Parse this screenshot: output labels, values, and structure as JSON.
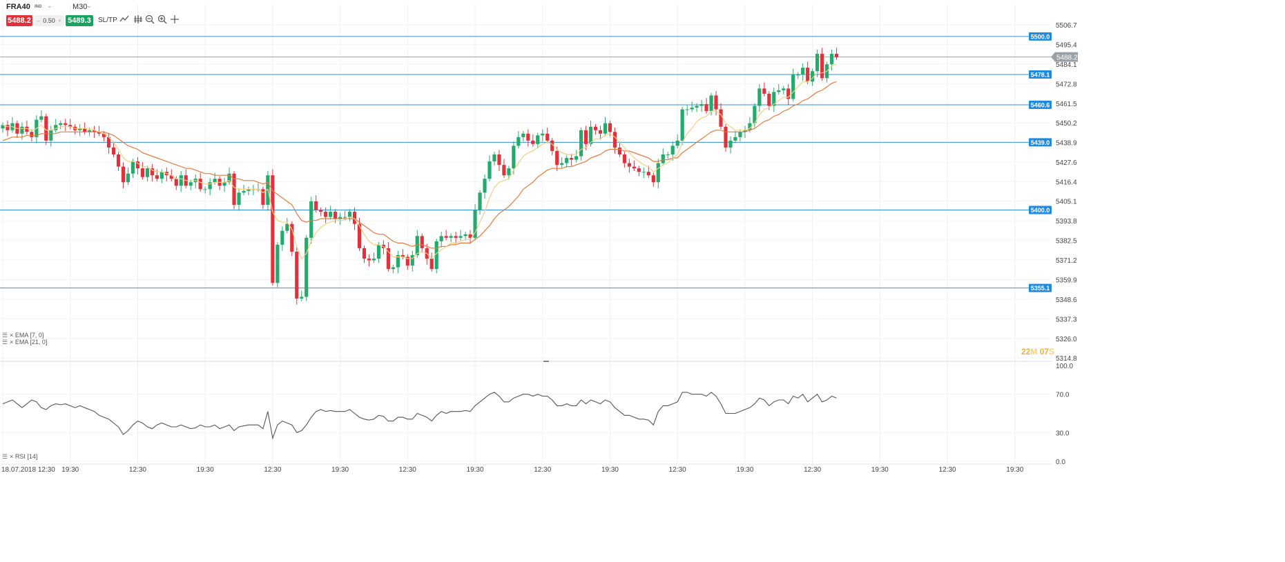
{
  "toolbar": {
    "symbol": "FRA40",
    "symbol_type": "IND",
    "timeframe": "M30",
    "sell_price": "5488.2",
    "spread": "0.50",
    "buy_price": "5489.3",
    "sltp_label": "SL/TP",
    "icons": [
      "chart-type-icon",
      "indicators-icon",
      "zoom-out-icon",
      "zoom-in-icon",
      "crosshair-icon"
    ]
  },
  "indicators": {
    "ema7_label": "EMA [7, 0]",
    "ema21_label": "EMA [21, 0]",
    "rsi_label": "RSI [14]"
  },
  "countdown": {
    "minutes": "22",
    "m_unit": "M",
    "seconds": "07",
    "s_unit": "S"
  },
  "colors": {
    "up": "#26a96c",
    "down": "#e0323c",
    "ema7": "#f2cf86",
    "ema21": "#e07a3e",
    "hline": "#2f8fdc",
    "level_badge": "#1f8ae0",
    "current_price": "#9aa1a6",
    "rsi": "#555555"
  },
  "chart_data": [
    {
      "type": "candlestick",
      "title": "",
      "y_ticks": [
        "5506.7",
        "5495.4",
        "5484.1",
        "5472.8",
        "5461.5",
        "5450.2",
        "5438.9",
        "5427.6",
        "5416.4",
        "5405.1",
        "5393.8",
        "5382.5",
        "5371.2",
        "5359.9",
        "5348.6",
        "5337.3",
        "5326.0",
        "5314.8"
      ],
      "ylim": [
        5314.8,
        5506.7
      ],
      "x_tick_labels": [
        "18.07.2018 12:30",
        "19:30",
        "12:30",
        "19:30",
        "12:30",
        "19:30",
        "12:30",
        "19:30",
        "12:30",
        "19:30",
        "12:30",
        "19:30",
        "12:30",
        "19:30",
        "12:30",
        "19:30"
      ],
      "x_tick_bars": [
        0,
        14,
        28,
        42,
        56,
        70,
        84,
        98,
        112,
        126,
        140,
        154,
        168,
        182,
        196,
        210
      ],
      "horizontal_levels": [
        5500.0,
        5478.1,
        5460.6,
        5439.0,
        5400.0,
        5355.1
      ],
      "level_labels": [
        "5500.0",
        "5478.1",
        "5460.6",
        "5439.0",
        "5400.0",
        "5355.1"
      ],
      "current_price": 5488.2,
      "current_price_label": "5488.2",
      "close": [
        5449,
        5446,
        5450,
        5444,
        5448,
        5445,
        5442,
        5452,
        5454,
        5440,
        5446,
        5449,
        5450,
        5449,
        5448,
        5446,
        5447,
        5445,
        5446,
        5445,
        5444,
        5442,
        5436,
        5432,
        5425,
        5416,
        5421,
        5428,
        5424,
        5419,
        5424,
        5420,
        5418,
        5422,
        5420,
        5418,
        5414,
        5420,
        5414,
        5416,
        5418,
        5412,
        5412,
        5416,
        5418,
        5414,
        5416,
        5421,
        5403,
        5410,
        5411,
        5412,
        5412,
        5412,
        5403,
        5420,
        5358,
        5380,
        5388,
        5392,
        5376,
        5349,
        5350,
        5384,
        5405,
        5400,
        5399,
        5396,
        5399,
        5395,
        5396,
        5396,
        5399,
        5392,
        5378,
        5372,
        5371,
        5372,
        5380,
        5378,
        5366,
        5367,
        5374,
        5373,
        5368,
        5374,
        5385,
        5378,
        5372,
        5366,
        5382,
        5385,
        5384,
        5385,
        5384,
        5385,
        5386,
        5384,
        5400,
        5410,
        5418,
        5428,
        5432,
        5426,
        5420,
        5424,
        5437,
        5442,
        5444,
        5440,
        5438,
        5443,
        5444,
        5440,
        5434,
        5426,
        5427,
        5430,
        5429,
        5431,
        5446,
        5438,
        5448,
        5446,
        5444,
        5450,
        5445,
        5436,
        5432,
        5427,
        5425,
        5424,
        5422,
        5422,
        5420,
        5416,
        5427,
        5432,
        5432,
        5437,
        5440,
        5458,
        5458,
        5459,
        5460,
        5461,
        5457,
        5466,
        5458,
        5448,
        5436,
        5440,
        5442,
        5445,
        5446,
        5450,
        5460,
        5470,
        5467,
        5460,
        5468,
        5469,
        5470,
        5464,
        5478,
        5478,
        5482,
        5474,
        5480,
        5490,
        5476,
        5484,
        5490,
        5488
      ],
      "ema_7": [
        5449,
        5448,
        5448,
        5447,
        5447,
        5447,
        5446,
        5447,
        5449,
        5446,
        5446,
        5447,
        5448,
        5448,
        5448,
        5447,
        5447,
        5447,
        5447,
        5446,
        5445,
        5444,
        5442,
        5439,
        5435,
        5430,
        5428,
        5428,
        5427,
        5425,
        5425,
        5423,
        5422,
        5422,
        5421,
        5420,
        5418,
        5418,
        5417,
        5417,
        5417,
        5416,
        5415,
        5415,
        5416,
        5416,
        5416,
        5417,
        5413,
        5412,
        5412,
        5412,
        5412,
        5412,
        5410,
        5412,
        5399,
        5394,
        5393,
        5393,
        5389,
        5379,
        5372,
        5375,
        5382,
        5387,
        5390,
        5392,
        5393,
        5394,
        5394,
        5394,
        5396,
        5395,
        5391,
        5386,
        5382,
        5380,
        5380,
        5379,
        5376,
        5373,
        5373,
        5373,
        5372,
        5372,
        5375,
        5376,
        5375,
        5372,
        5375,
        5377,
        5379,
        5381,
        5381,
        5382,
        5383,
        5383,
        5387,
        5393,
        5399,
        5407,
        5413,
        5416,
        5417,
        5418,
        5423,
        5427,
        5431,
        5433,
        5434,
        5436,
        5438,
        5439,
        5438,
        5435,
        5433,
        5432,
        5432,
        5432,
        5435,
        5436,
        5439,
        5441,
        5441,
        5443,
        5444,
        5442,
        5439,
        5436,
        5433,
        5430,
        5428,
        5426,
        5425,
        5422,
        5424,
        5426,
        5427,
        5430,
        5432,
        5439,
        5444,
        5447,
        5451,
        5453,
        5454,
        5457,
        5457,
        5455,
        5450,
        5448,
        5446,
        5446,
        5446,
        5447,
        5450,
        5455,
        5458,
        5459,
        5461,
        5463,
        5465,
        5465,
        5468,
        5471,
        5474,
        5474,
        5476,
        5479,
        5479,
        5480,
        5483,
        5484
      ],
      "ema_21": [
        5440,
        5441,
        5442,
        5442,
        5442,
        5443,
        5443,
        5443,
        5444,
        5444,
        5444,
        5444,
        5445,
        5445,
        5445,
        5445,
        5445,
        5445,
        5445,
        5445,
        5445,
        5445,
        5444,
        5443,
        5441,
        5439,
        5437,
        5436,
        5435,
        5433,
        5432,
        5431,
        5430,
        5429,
        5428,
        5427,
        5426,
        5425,
        5424,
        5424,
        5423,
        5422,
        5421,
        5421,
        5420,
        5420,
        5420,
        5420,
        5418,
        5418,
        5417,
        5417,
        5417,
        5416,
        5415,
        5416,
        5411,
        5409,
        5407,
        5405,
        5403,
        5398,
        5394,
        5393,
        5394,
        5394,
        5395,
        5395,
        5395,
        5395,
        5395,
        5395,
        5395,
        5395,
        5393,
        5391,
        5389,
        5387,
        5386,
        5386,
        5384,
        5382,
        5381,
        5381,
        5380,
        5379,
        5380,
        5380,
        5379,
        5378,
        5378,
        5379,
        5379,
        5380,
        5380,
        5381,
        5381,
        5381,
        5383,
        5385,
        5388,
        5391,
        5395,
        5398,
        5400,
        5402,
        5405,
        5408,
        5412,
        5414,
        5416,
        5419,
        5421,
        5423,
        5424,
        5424,
        5424,
        5425,
        5425,
        5426,
        5427,
        5428,
        5430,
        5431,
        5432,
        5434,
        5435,
        5435,
        5435,
        5434,
        5434,
        5433,
        5432,
        5431,
        5430,
        5428,
        5428,
        5429,
        5429,
        5430,
        5430,
        5433,
        5435,
        5437,
        5439,
        5441,
        5443,
        5445,
        5446,
        5446,
        5445,
        5445,
        5445,
        5445,
        5445,
        5446,
        5447,
        5449,
        5451,
        5452,
        5454,
        5455,
        5457,
        5458,
        5460,
        5461,
        5463,
        5464,
        5466,
        5468,
        5469,
        5471,
        5473,
        5474
      ]
    },
    {
      "type": "line",
      "title": "",
      "name": "RSI [14]",
      "ylim": [
        0,
        100
      ],
      "y_ticks": [
        "100.0",
        "70.0",
        "30.0",
        "0.0"
      ],
      "values": [
        60,
        62,
        64,
        60,
        56,
        60,
        64,
        62,
        56,
        54,
        58,
        60,
        59,
        60,
        58,
        56,
        58,
        56,
        54,
        52,
        48,
        46,
        44,
        40,
        36,
        28,
        32,
        38,
        42,
        40,
        36,
        34,
        38,
        40,
        38,
        36,
        36,
        38,
        36,
        34,
        35,
        38,
        36,
        36,
        38,
        34,
        36,
        38,
        32,
        36,
        37,
        38,
        38,
        38,
        34,
        52,
        24,
        38,
        42,
        40,
        38,
        30,
        32,
        38,
        46,
        52,
        54,
        52,
        53,
        52,
        52,
        52,
        54,
        50,
        46,
        44,
        43,
        44,
        48,
        47,
        42,
        42,
        46,
        46,
        44,
        44,
        50,
        48,
        46,
        42,
        48,
        52,
        50,
        52,
        52,
        52,
        53,
        52,
        58,
        62,
        66,
        70,
        72,
        68,
        62,
        62,
        66,
        68,
        70,
        70,
        68,
        70,
        68,
        68,
        64,
        58,
        58,
        60,
        58,
        58,
        64,
        60,
        64,
        62,
        60,
        64,
        62,
        56,
        52,
        48,
        48,
        46,
        44,
        44,
        43,
        38,
        52,
        58,
        58,
        60,
        62,
        72,
        72,
        70,
        70,
        70,
        68,
        72,
        68,
        60,
        50,
        50,
        50,
        52,
        54,
        56,
        60,
        66,
        64,
        58,
        62,
        64,
        64,
        60,
        68,
        66,
        70,
        62,
        66,
        70,
        62,
        64,
        68,
        66
      ]
    }
  ]
}
